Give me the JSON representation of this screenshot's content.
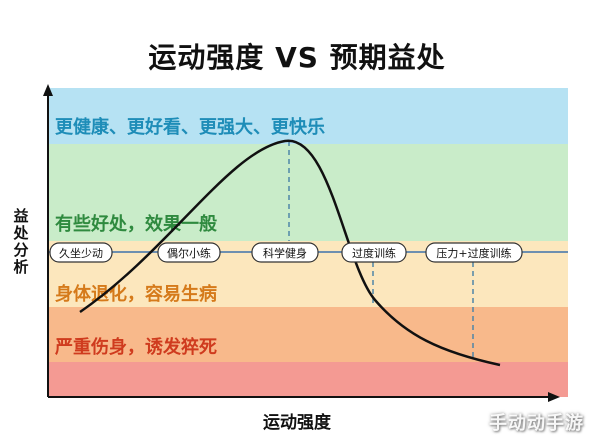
{
  "title": "运动强度 VS 预期益处",
  "y_axis_label": "益处分析",
  "x_axis_label": "运动强度",
  "watermark": "手动动手游",
  "zones": [
    {
      "label": "更健康、更好看、更强大、更快乐",
      "color": "#b6e2f3",
      "text_color": "#1e8db8"
    },
    {
      "label": "有些好处，效果一般",
      "color": "#c9ecc9",
      "text_color": "#2f8a3f"
    },
    {
      "label": "身体退化，容易生病",
      "color": "#fce7bd",
      "text_color": "#d57a1a"
    },
    {
      "label": "严重伤身，诱发猝死",
      "color": "#f8b98b",
      "text_color": "#cf3b1e"
    },
    {
      "label": "",
      "color": "#f49a93",
      "text_color": "#cf3b1e"
    }
  ],
  "stages": [
    {
      "label": "久坐少动"
    },
    {
      "label": "偶尔小练"
    },
    {
      "label": "科学健身"
    },
    {
      "label": "过度训练"
    },
    {
      "label": "压力+过度训练"
    }
  ],
  "colors": {
    "axis": "#111111",
    "curve": "#111111",
    "baseline": "#6d8fb0",
    "dashed": "#4f86a8"
  }
}
